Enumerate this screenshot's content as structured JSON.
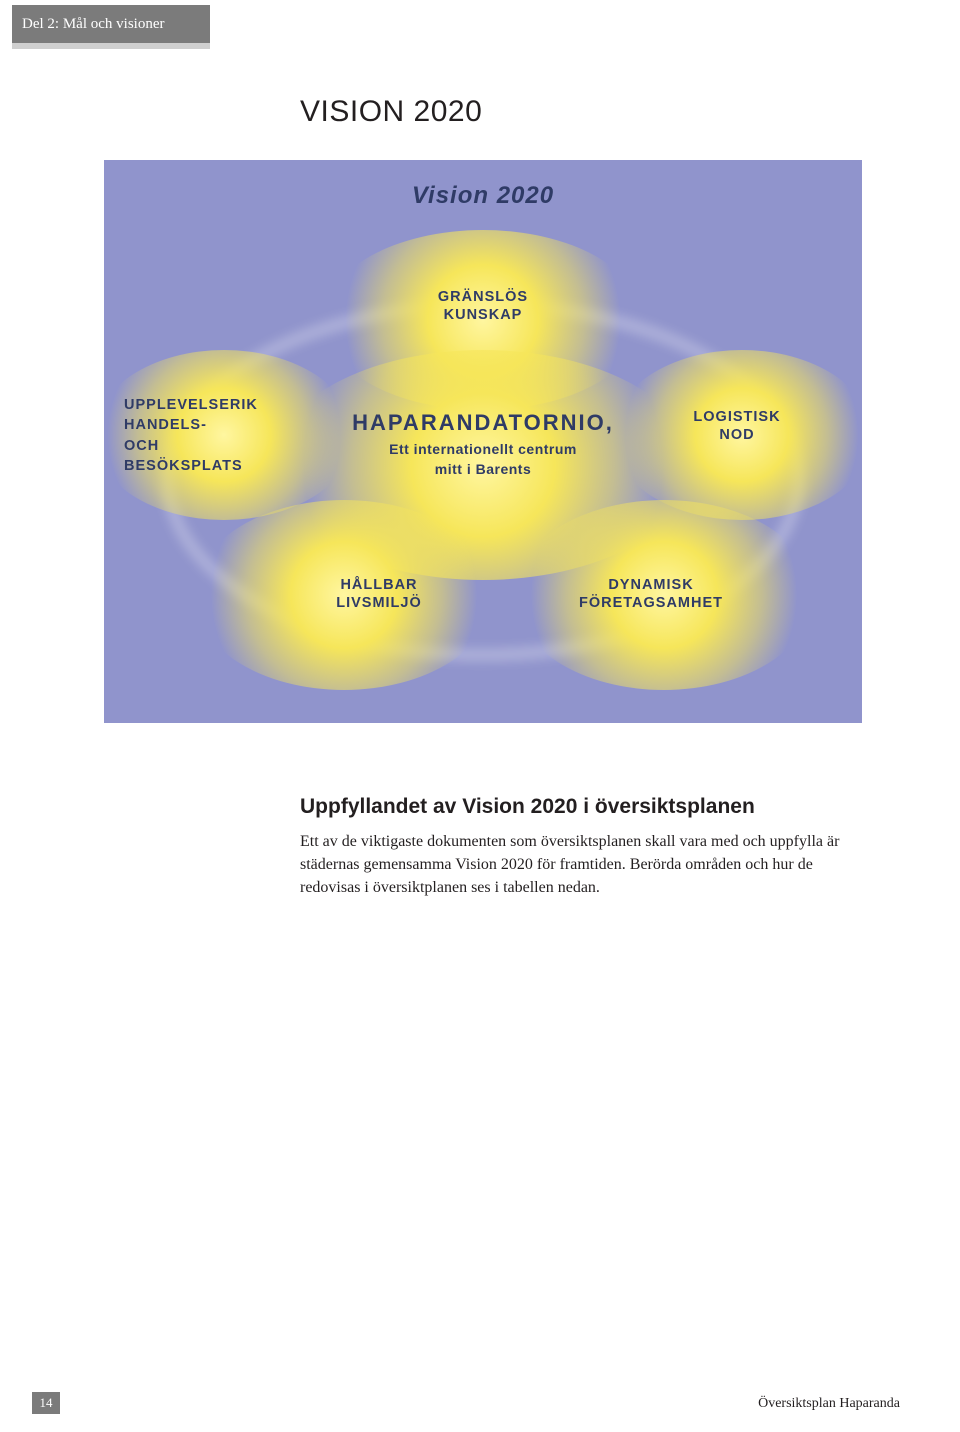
{
  "tab": {
    "label": "Del 2: Mål och visioner"
  },
  "heading": "VISION 2020",
  "diagram": {
    "type": "infographic",
    "background_color": "#9094cc",
    "glow_color": "#f6e65a",
    "ring_color": "rgba(255,255,255,0.35)",
    "text_color": "#2f3b66",
    "title": "Vision 2020",
    "top_node": "GRÄNSLÖS\nKUNSKAP",
    "left_node": "UPPLEVELSERIK\nHANDELS-\nOCH\nBESÖKSPLATS",
    "right_node": "LOGISTISK\nNOD",
    "bottom_left_node": "HÅLLBAR\nLIVSMILJÖ",
    "bottom_right_node": "DYNAMISK\nFÖRETAGSAMHET",
    "center_title": "HAPARANDATORNIO,",
    "center_sub": "Ett internationellt centrum\nmitt i Barents",
    "title_fontsize": 24,
    "center_title_fontsize": 22,
    "node_fontsize": 14.5
  },
  "subheading": "Uppfyllandet av Vision 2020 i översiktsplanen",
  "body": "Ett av de viktigaste dokumenten som översiktsplanen skall vara med och uppfylla är städernas gemensamma Vision 2020 för framtiden. Berörda områden och hur de redovisas i översiktplanen ses i tabellen nedan.",
  "footer": {
    "page_number": "14",
    "doc_title": "Översiktsplan Haparanda"
  },
  "colors": {
    "tab_bg": "#7b7b7b",
    "tab_text": "#ffffff",
    "text": "#231f20",
    "page_bg": "#ffffff"
  }
}
